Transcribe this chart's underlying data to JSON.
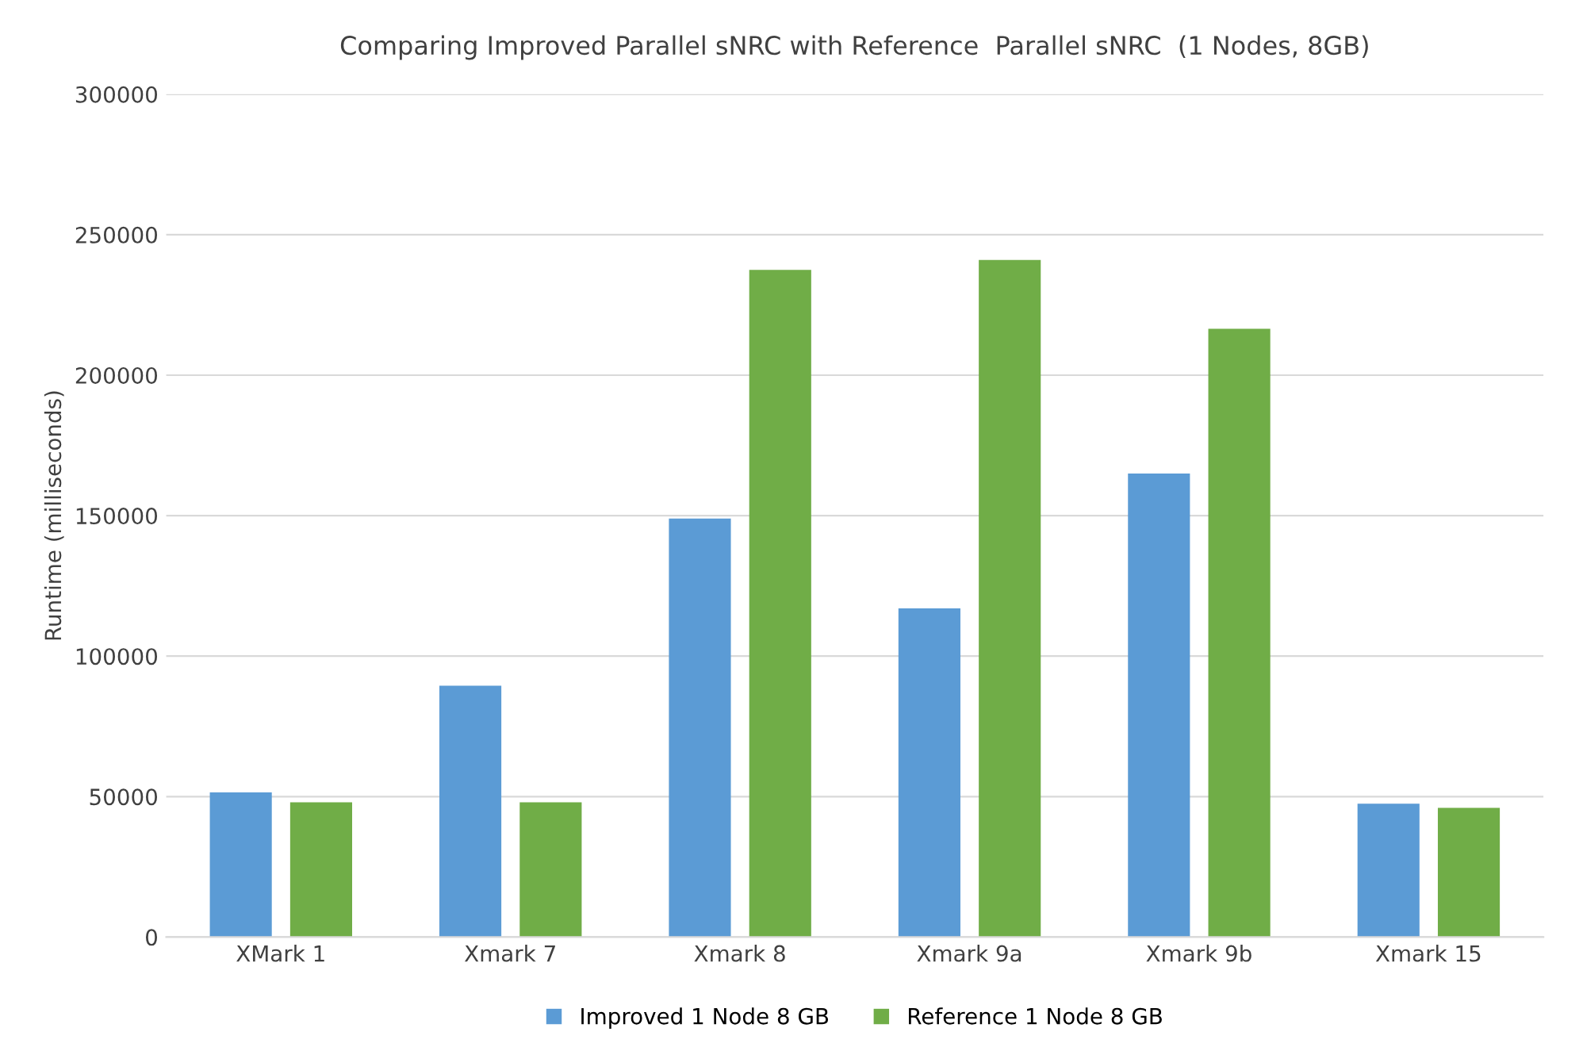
{
  "chart_data": {
    "type": "bar",
    "title": "Comparing Improved Parallel sNRC with Reference  Parallel sNRC  (1 Nodes, 8GB)",
    "ylabel": "Runtime (milliseconds)",
    "categories": [
      "XMark 1",
      "Xmark 7",
      "Xmark 8",
      "Xmark 9a",
      "Xmark 9b",
      "Xmark 15"
    ],
    "series": [
      {
        "name": "Improved 1 Node 8 GB",
        "color": "#5b9bd5",
        "values": [
          51500,
          89500,
          149000,
          117000,
          165000,
          47500
        ]
      },
      {
        "name": "Reference 1 Node 8 GB",
        "color": "#70ad47",
        "values": [
          48000,
          48000,
          237500,
          241000,
          216500,
          46000
        ]
      }
    ],
    "ylim": [
      0,
      300000
    ],
    "yticks": [
      0,
      50000,
      100000,
      150000,
      200000,
      250000,
      300000
    ],
    "grid": "y",
    "legend": "bottom"
  }
}
